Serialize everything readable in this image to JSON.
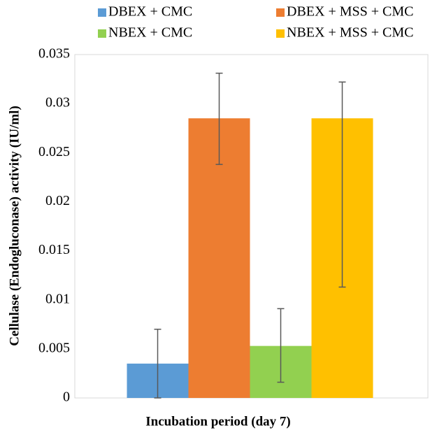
{
  "chart_data": {
    "type": "bar",
    "y_label": "Cellulase (Endogluconase) activity (IU/ml)",
    "x_label": "Incubation period (day 7)",
    "categories": [
      null
    ],
    "series": [
      {
        "name": "DBEX + CMC",
        "color": "#5b9bd5",
        "values": [
          0.0035
        ],
        "error_plus": [
          0.0035
        ],
        "error_minus": [
          0.0035
        ]
      },
      {
        "name": "DBEX + MSS + CMC",
        "color": "#ed7d31",
        "values": [
          0.0285
        ],
        "error_plus": [
          0.0046
        ],
        "error_minus": [
          0.0047
        ]
      },
      {
        "name": "NBEX + CMC",
        "color": "#92d050",
        "values": [
          0.0053
        ],
        "error_plus": [
          0.0038
        ],
        "error_minus": [
          0.0037
        ]
      },
      {
        "name": "NBEX + MSS + CMC",
        "color": "#ffc000",
        "values": [
          0.0285
        ],
        "error_plus": [
          0.0037
        ],
        "error_minus": [
          0.0172
        ]
      }
    ],
    "ylim": [
      0,
      0.035
    ],
    "yticks": [
      0,
      0.005,
      0.01,
      0.015,
      0.02,
      0.025,
      0.03,
      0.035
    ],
    "grid": false,
    "legend": "top"
  }
}
